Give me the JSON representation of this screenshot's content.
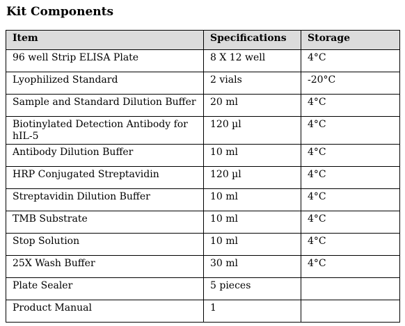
{
  "title": "Kit Components",
  "table": {
    "headers": [
      "Item",
      "Specifications",
      "Storage"
    ],
    "rows": [
      {
        "item": "96 well Strip ELISA Plate",
        "spec": "8 X 12 well",
        "storage": "4°C"
      },
      {
        "item": "Lyophilized Standard",
        "spec": "2 vials",
        "storage": "-20°C"
      },
      {
        "item": "Sample and Standard Dilution Buffer",
        "spec": "20 ml",
        "storage": "4°C"
      },
      {
        "item": "Biotinylated Detection Antibody  for hIL-5",
        "spec": "120 µl",
        "storage": "4°C"
      },
      {
        "item": "Antibody Dilution Buffer",
        "spec": "10 ml",
        "storage": "4°C"
      },
      {
        "item": "HRP Conjugated Streptavidin",
        "spec": "120 µl",
        "storage": "4°C"
      },
      {
        "item": "Streptavidin Dilution Buffer",
        "spec": "10 ml",
        "storage": "4°C"
      },
      {
        "item": "TMB Substrate",
        "spec": "10 ml",
        "storage": "4°C"
      },
      {
        "item": "Stop Solution",
        "spec": "10 ml",
        "storage": "4°C"
      },
      {
        "item": "25X Wash Buffer",
        "spec": "30 ml",
        "storage": "4°C"
      },
      {
        "item": "Plate Sealer",
        "spec": "5 pieces",
        "storage": ""
      },
      {
        "item": "Product Manual",
        "spec": "1",
        "storage": ""
      }
    ]
  }
}
